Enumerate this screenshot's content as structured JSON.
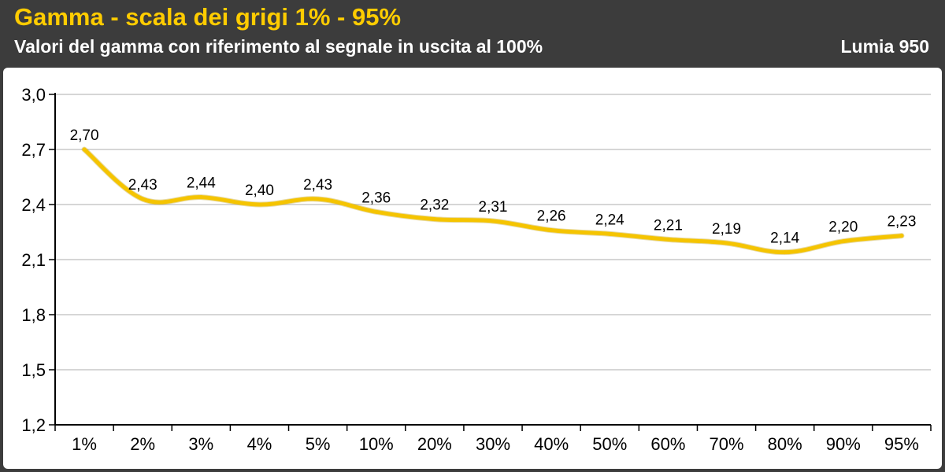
{
  "header": {
    "title": "Gamma - scala dei grigi 1% - 95%",
    "subtitle": "Valori del gamma con riferimento al segnale in uscita al 100%",
    "device": "Lumia 950"
  },
  "colors": {
    "background": "#3c3c3c",
    "title": "#ffcc00",
    "line": "#f5c400",
    "grid": "#c8c8c8"
  },
  "chart_data": {
    "type": "line",
    "title": "Gamma - scala dei grigi 1% - 95%",
    "subtitle": "Valori del gamma con riferimento al segnale in uscita al 100%",
    "xlabel": "",
    "ylabel": "",
    "categories": [
      "1%",
      "2%",
      "3%",
      "4%",
      "5%",
      "10%",
      "20%",
      "30%",
      "40%",
      "50%",
      "60%",
      "70%",
      "80%",
      "90%",
      "95%"
    ],
    "series": [
      {
        "name": "Lumia 950",
        "values": [
          2.7,
          2.43,
          2.44,
          2.4,
          2.43,
          2.36,
          2.32,
          2.31,
          2.26,
          2.24,
          2.21,
          2.19,
          2.14,
          2.2,
          2.23
        ],
        "value_labels": [
          "2,70",
          "2,43",
          "2,44",
          "2,40",
          "2,43",
          "2,36",
          "2,32",
          "2,31",
          "2,26",
          "2,24",
          "2,21",
          "2,19",
          "2,14",
          "2,20",
          "2,23"
        ]
      }
    ],
    "ylim": [
      1.2,
      3.0
    ],
    "yticks": [
      1.2,
      1.5,
      1.8,
      2.1,
      2.4,
      2.7,
      3.0
    ],
    "ytick_labels": [
      "1,2",
      "1,5",
      "1,8",
      "2,1",
      "2,4",
      "2,7",
      "3,0"
    ],
    "grid": true,
    "legend": "none"
  }
}
